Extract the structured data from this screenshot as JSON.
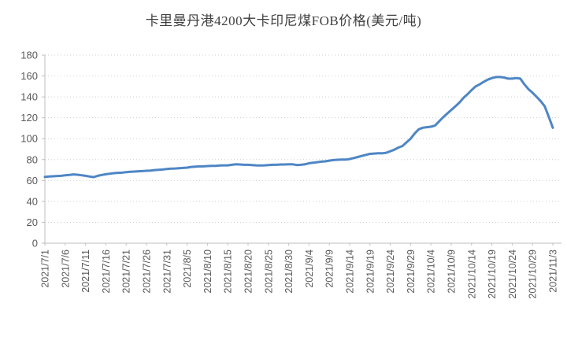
{
  "page": {
    "background": "#ffffff"
  },
  "chart_data": {
    "type": "line",
    "title": "卡里曼丹港4200大卡印尼煤FOB价格(美元/吨)",
    "xlabel": "",
    "ylabel": "",
    "ylim": [
      0,
      180
    ],
    "y_ticks": [
      0,
      20,
      40,
      60,
      80,
      100,
      120,
      140,
      160,
      180
    ],
    "x_tick_labels": [
      "2021/7/1",
      "2021/7/6",
      "2021/7/11",
      "2021/7/16",
      "2021/7/21",
      "2021/7/26",
      "2021/7/31",
      "2021/8/5",
      "2021/8/10",
      "2021/8/15",
      "2021/8/20",
      "2021/8/25",
      "2021/8/30",
      "2021/9/4",
      "2021/9/9",
      "2021/9/14",
      "2021/9/19",
      "2021/9/24",
      "2021/9/29",
      "2021/10/4",
      "2021/10/9",
      "2021/10/14",
      "2021/10/19",
      "2021/10/24",
      "2021/10/29",
      "2021/11/3"
    ],
    "x_tick_every_n_points": 5,
    "grid": "horizontal-dotted",
    "legend_position": "none",
    "line_color": "#4E86C5",
    "axis_color": "#BFBFBF",
    "gridline_color": "#CDCDCD",
    "tick_label_color": "#595959",
    "title_color": "#404040",
    "values": [
      63.5,
      63.8,
      64.0,
      64.3,
      64.5,
      65.0,
      65.3,
      65.8,
      65.5,
      65.0,
      64.5,
      63.8,
      63.3,
      64.5,
      65.3,
      66.0,
      66.5,
      67.0,
      67.3,
      67.5,
      68.0,
      68.3,
      68.5,
      68.8,
      69.0,
      69.3,
      69.5,
      70.0,
      70.3,
      70.5,
      71.0,
      71.3,
      71.5,
      71.8,
      72.0,
      72.3,
      73.0,
      73.3,
      73.5,
      73.5,
      73.8,
      74.0,
      74.0,
      74.3,
      74.5,
      74.5,
      75.0,
      75.5,
      75.3,
      75.0,
      75.0,
      74.8,
      74.5,
      74.3,
      74.5,
      74.8,
      75.0,
      75.0,
      75.3,
      75.3,
      75.5,
      75.5,
      74.8,
      75.0,
      75.5,
      76.5,
      77.0,
      77.5,
      78.0,
      78.3,
      79.0,
      79.5,
      79.8,
      80.0,
      80.0,
      80.5,
      81.5,
      82.5,
      83.5,
      84.5,
      85.5,
      85.8,
      86.0,
      86.0,
      86.5,
      88.0,
      89.5,
      91.5,
      93.0,
      96.5,
      100.0,
      105.0,
      109.0,
      110.5,
      111.0,
      111.5,
      112.5,
      116.5,
      120.5,
      124.0,
      127.5,
      131.0,
      134.5,
      139.0,
      142.5,
      146.5,
      150.0,
      152.0,
      154.5,
      156.5,
      158.0,
      159.0,
      159.0,
      158.5,
      157.5,
      157.5,
      158.0,
      157.5,
      152.0,
      147.5,
      144.0,
      140.0,
      136.0,
      131.0,
      121.0,
      110.5
    ]
  }
}
